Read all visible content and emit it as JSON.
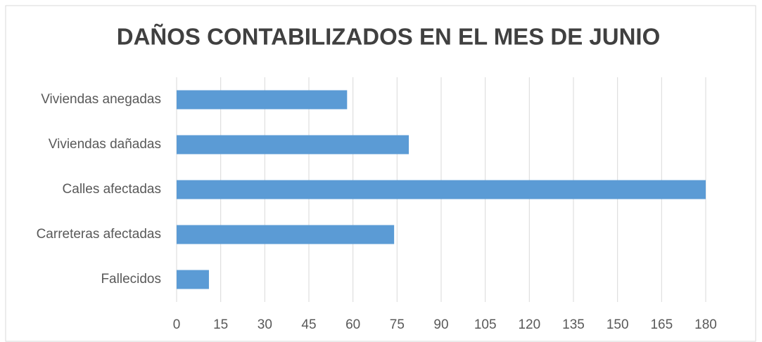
{
  "chart_data": {
    "type": "bar",
    "orientation": "horizontal",
    "title": "DAÑOS CONTABILIZADOS EN EL MES DE JUNIO",
    "categories": [
      "Viviendas anegadas",
      "Viviendas dañadas",
      "Calles afectadas",
      "Carreteras afectadas",
      "Fallecidos"
    ],
    "values": [
      58,
      79,
      180,
      74,
      11
    ],
    "color": "#5b9bd5",
    "xlim": [
      0,
      180
    ],
    "xticks": [
      0,
      15,
      30,
      45,
      60,
      75,
      90,
      105,
      120,
      135,
      150,
      165,
      180
    ],
    "grid": true
  }
}
